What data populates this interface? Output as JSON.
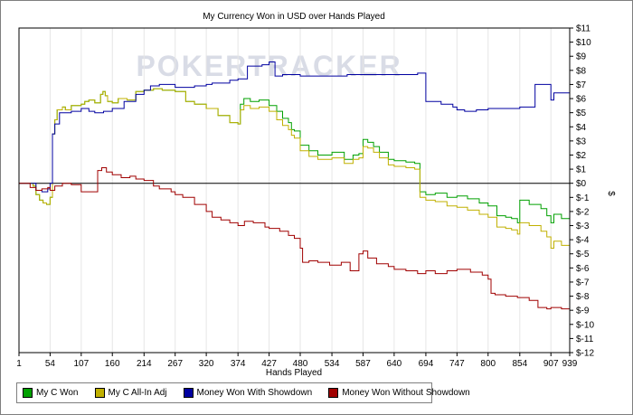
{
  "chart_data": {
    "type": "line",
    "title": "My Currency Won in USD over Hands Played",
    "xlabel": "Hands Played",
    "ylabel": "$",
    "watermark": "POKERTRACKER",
    "xlim": [
      1,
      939
    ],
    "ylim": [
      -12,
      11
    ],
    "x_ticks": [
      1,
      54,
      107,
      160,
      214,
      267,
      320,
      374,
      427,
      480,
      534,
      587,
      640,
      694,
      747,
      800,
      854,
      907,
      939
    ],
    "y_ticks": [
      11,
      10,
      9,
      8,
      7,
      6,
      5,
      4,
      3,
      2,
      1,
      0,
      -1,
      -2,
      -3,
      -4,
      -5,
      -6,
      -7,
      -8,
      -9,
      -10,
      -11,
      -12
    ],
    "y_tick_labels": [
      "$11",
      "$10",
      "$9",
      "$8",
      "$7",
      "$6",
      "$5",
      "$4",
      "$3",
      "$2",
      "$1",
      "$0",
      "$-1",
      "$-2",
      "$-3",
      "$-4",
      "$-5",
      "$-6",
      "$-7",
      "$-8",
      "$-9",
      "$-10",
      "$-11",
      "$-12"
    ],
    "grid": "vertical",
    "legend_position": "bottom",
    "colors": {
      "won": "#00a000",
      "allin": "#c0b000",
      "showdown": "#0000a0",
      "noshowdown": "#a00000"
    },
    "series": [
      {
        "name": "My C Won",
        "color": "#00a000",
        "x": [
          1,
          15,
          25,
          30,
          36,
          42,
          48,
          54,
          58,
          62,
          66,
          75,
          80,
          90,
          100,
          107,
          113,
          120,
          130,
          140,
          144,
          148,
          152,
          160,
          170,
          185,
          200,
          214,
          230,
          245,
          267,
          285,
          300,
          320,
          340,
          360,
          374,
          378,
          384,
          395,
          410,
          427,
          440,
          450,
          460,
          465,
          470,
          480,
          495,
          510,
          534,
          555,
          570,
          580,
          587,
          595,
          605,
          615,
          630,
          640,
          660,
          675,
          684,
          694,
          710,
          730,
          747,
          765,
          785,
          800,
          815,
          830,
          840,
          850,
          854,
          870,
          890,
          900,
          907,
          912,
          925,
          939
        ],
        "y": [
          0,
          0,
          -0.2,
          -0.8,
          -1.2,
          -1.4,
          -1.5,
          -1.0,
          3.5,
          4.5,
          5.2,
          5.4,
          5.2,
          5.5,
          5.5,
          5.6,
          5.8,
          5.9,
          5.7,
          6.3,
          6.5,
          6.2,
          5.8,
          5.7,
          6.0,
          5.9,
          6.5,
          6.6,
          6.7,
          6.6,
          6.5,
          5.8,
          5.6,
          5.3,
          4.8,
          4.3,
          4.2,
          5.6,
          6.0,
          5.8,
          5.9,
          5.5,
          5.1,
          4.6,
          4.3,
          3.8,
          3.7,
          2.7,
          2.3,
          2.0,
          2.2,
          1.7,
          2.0,
          2.1,
          3.1,
          2.9,
          2.6,
          2.2,
          1.7,
          1.6,
          1.5,
          1.4,
          -0.6,
          -0.8,
          -0.7,
          -1.0,
          -0.9,
          -1.1,
          -1.4,
          -1.6,
          -2.3,
          -2.4,
          -2.5,
          -2.8,
          -1.2,
          -1.5,
          -1.8,
          -2.3,
          -2.8,
          -2.2,
          -2.5,
          -2.7
        ]
      },
      {
        "name": "My C All-In Adj",
        "color": "#c0b000",
        "x": [
          1,
          15,
          25,
          30,
          36,
          42,
          48,
          54,
          58,
          62,
          66,
          75,
          80,
          90,
          100,
          107,
          113,
          120,
          130,
          140,
          144,
          148,
          152,
          160,
          170,
          185,
          200,
          214,
          230,
          245,
          267,
          285,
          300,
          320,
          340,
          360,
          374,
          378,
          384,
          395,
          410,
          427,
          440,
          450,
          460,
          465,
          470,
          480,
          495,
          510,
          534,
          555,
          570,
          580,
          587,
          595,
          605,
          615,
          630,
          640,
          660,
          675,
          684,
          694,
          710,
          730,
          747,
          765,
          785,
          800,
          815,
          830,
          840,
          850,
          854,
          870,
          890,
          900,
          907,
          912,
          925,
          939
        ],
        "y": [
          0,
          0,
          -0.2,
          -0.8,
          -1.2,
          -1.4,
          -1.5,
          -1.0,
          3.5,
          4.5,
          5.2,
          5.4,
          5.2,
          5.5,
          5.5,
          5.6,
          5.8,
          5.9,
          5.7,
          6.3,
          6.5,
          6.2,
          5.8,
          5.7,
          6.0,
          5.9,
          6.5,
          6.6,
          6.7,
          6.6,
          6.5,
          5.8,
          5.6,
          5.3,
          4.8,
          4.3,
          4.2,
          5.2,
          5.5,
          5.3,
          5.4,
          5.1,
          4.5,
          4.1,
          3.8,
          3.4,
          3.2,
          2.3,
          1.9,
          1.7,
          1.8,
          1.4,
          1.7,
          1.8,
          2.6,
          2.5,
          2.2,
          1.8,
          1.3,
          1.2,
          1.1,
          1.0,
          -1.0,
          -1.2,
          -1.3,
          -1.6,
          -1.7,
          -1.9,
          -2.2,
          -2.4,
          -3.1,
          -3.2,
          -3.3,
          -3.6,
          -2.8,
          -3.0,
          -3.4,
          -3.8,
          -4.6,
          -4.1,
          -4.4,
          -4.6
        ]
      },
      {
        "name": "Money Won With Showdown",
        "color": "#0000a0",
        "x": [
          1,
          20,
          30,
          40,
          50,
          54,
          58,
          62,
          70,
          90,
          107,
          120,
          130,
          145,
          160,
          180,
          200,
          214,
          225,
          240,
          267,
          300,
          320,
          330,
          360,
          374,
          390,
          415,
          427,
          437,
          450,
          480,
          520,
          560,
          600,
          640,
          680,
          684,
          694,
          720,
          740,
          747,
          760,
          780,
          800,
          830,
          850,
          854,
          880,
          905,
          907,
          912,
          925,
          939
        ],
        "y": [
          0,
          0,
          -0.5,
          -0.6,
          -0.4,
          0.0,
          3.5,
          4.2,
          5.0,
          5.1,
          5.3,
          5.1,
          5.0,
          5.1,
          5.3,
          5.8,
          6.3,
          6.6,
          6.9,
          7.0,
          6.8,
          6.9,
          7.0,
          7.1,
          7.3,
          7.4,
          8.3,
          8.4,
          8.6,
          7.6,
          7.7,
          7.6,
          7.6,
          7.7,
          7.7,
          7.7,
          7.8,
          7.8,
          5.8,
          5.6,
          5.4,
          5.2,
          5.1,
          5.2,
          5.3,
          5.3,
          5.3,
          5.4,
          7.0,
          7.0,
          5.9,
          6.4,
          6.4,
          6.4
        ]
      },
      {
        "name": "Money Won Without Showdown",
        "color": "#a00000",
        "x": [
          1,
          15,
          20,
          30,
          40,
          50,
          54,
          62,
          75,
          90,
          107,
          135,
          142,
          150,
          160,
          175,
          190,
          200,
          214,
          230,
          240,
          260,
          267,
          280,
          300,
          320,
          330,
          345,
          360,
          374,
          385,
          400,
          420,
          427,
          445,
          460,
          470,
          480,
          484,
          495,
          510,
          530,
          550,
          565,
          580,
          587,
          595,
          610,
          630,
          640,
          660,
          680,
          694,
          710,
          730,
          747,
          770,
          790,
          800,
          805,
          812,
          830,
          850,
          870,
          885,
          900,
          907,
          925,
          939
        ],
        "y": [
          0,
          0,
          -0.3,
          -0.5,
          -0.4,
          -0.3,
          -0.5,
          -0.2,
          0.0,
          -0.1,
          -0.6,
          0.9,
          1.1,
          0.8,
          0.6,
          0.4,
          0.5,
          0.3,
          0.2,
          -0.2,
          -0.4,
          -0.6,
          -0.8,
          -1.0,
          -1.5,
          -2.0,
          -2.4,
          -2.6,
          -2.8,
          -3.0,
          -2.7,
          -2.8,
          -3.1,
          -3.2,
          -3.4,
          -3.7,
          -3.9,
          -4.6,
          -5.6,
          -5.5,
          -5.6,
          -5.8,
          -5.6,
          -6.2,
          -5.0,
          -4.8,
          -5.3,
          -5.7,
          -5.9,
          -6.1,
          -6.2,
          -6.4,
          -6.2,
          -6.4,
          -6.2,
          -6.1,
          -6.3,
          -6.5,
          -6.8,
          -7.8,
          -7.9,
          -8.0,
          -8.1,
          -8.3,
          -8.8,
          -8.9,
          -8.8,
          -8.9,
          -9.0
        ]
      }
    ]
  }
}
